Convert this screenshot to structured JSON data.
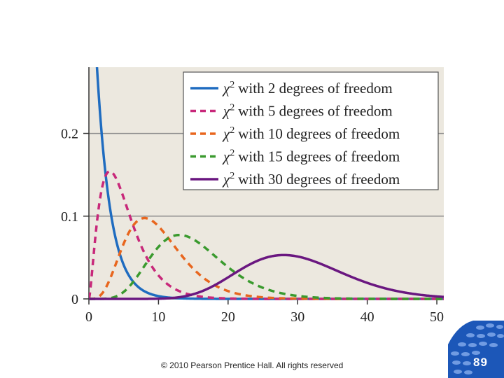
{
  "chart_data": {
    "type": "line",
    "xlim": [
      0,
      51
    ],
    "ylim": [
      0,
      0.28
    ],
    "x_ticks": [
      "0",
      "10",
      "20",
      "30",
      "40",
      "50"
    ],
    "x_tick_values": [
      0,
      10,
      20,
      30,
      40,
      50
    ],
    "y_ticks": [
      "0",
      "0.1",
      "0.2"
    ],
    "y_tick_values": [
      0,
      0.1,
      0.2
    ],
    "grid": true,
    "legend_position": "top-right",
    "series": [
      {
        "name": "with 2 degrees of freedom",
        "df": 2,
        "color": "#1f6cc0",
        "dash": "solid"
      },
      {
        "name": "with 5 degrees of freedom",
        "df": 5,
        "color": "#c8287a",
        "dash": "dashed"
      },
      {
        "name": "with 10 degrees of freedom",
        "df": 10,
        "color": "#e8661e",
        "dash": "dashed"
      },
      {
        "name": "with 15 degrees of freedom",
        "df": 15,
        "color": "#3a9a2e",
        "dash": "dashed"
      },
      {
        "name": "with 30 degrees of freedom",
        "df": 30,
        "color": "#6a1780",
        "dash": "solid"
      }
    ],
    "legend_symbol": "χ",
    "legend_superscript": "2"
  },
  "footer": {
    "copyright": "© 2010 Pearson Prentice Hall. All rights reserved",
    "page_number": "89"
  },
  "colors": {
    "plot_background": "#ece8df",
    "grid": "#8c8c8c",
    "badge": "#1c57b8"
  }
}
